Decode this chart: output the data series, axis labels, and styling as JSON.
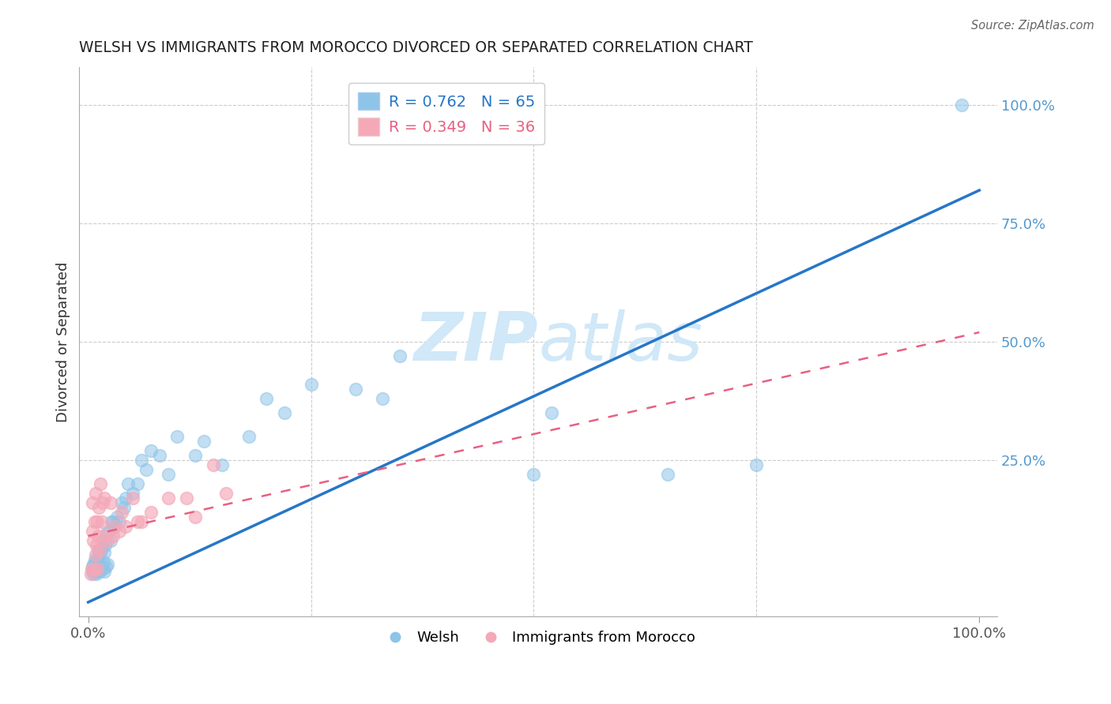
{
  "title": "WELSH VS IMMIGRANTS FROM MOROCCO DIVORCED OR SEPARATED CORRELATION CHART",
  "source": "Source: ZipAtlas.com",
  "ylabel": "Divorced or Separated",
  "xlim": [
    -0.01,
    1.02
  ],
  "ylim": [
    -0.08,
    1.08
  ],
  "ytick_vals": [
    0.25,
    0.5,
    0.75,
    1.0
  ],
  "welsh_R": 0.762,
  "welsh_N": 65,
  "morocco_R": 0.349,
  "morocco_N": 36,
  "welsh_color": "#8ec4e8",
  "morocco_color": "#f4a8b8",
  "welsh_line_color": "#2676c8",
  "morocco_line_color": "#e86080",
  "background_color": "#ffffff",
  "grid_color": "#cccccc",
  "watermark_color": "#d0e8f8",
  "welsh_line_x0": 0.0,
  "welsh_line_y0": -0.05,
  "welsh_line_x1": 1.0,
  "welsh_line_y1": 0.82,
  "morocco_line_x0": 0.0,
  "morocco_line_y0": 0.09,
  "morocco_line_x1": 1.0,
  "morocco_line_y1": 0.52,
  "welsh_x": [
    0.005,
    0.005,
    0.006,
    0.006,
    0.007,
    0.007,
    0.008,
    0.008,
    0.009,
    0.009,
    0.01,
    0.01,
    0.011,
    0.011,
    0.012,
    0.012,
    0.013,
    0.013,
    0.014,
    0.014,
    0.015,
    0.015,
    0.016,
    0.016,
    0.017,
    0.018,
    0.018,
    0.019,
    0.02,
    0.02,
    0.022,
    0.023,
    0.025,
    0.026,
    0.028,
    0.03,
    0.032,
    0.035,
    0.038,
    0.04,
    0.042,
    0.045,
    0.05,
    0.055,
    0.06,
    0.065,
    0.07,
    0.08,
    0.09,
    0.1,
    0.12,
    0.13,
    0.15,
    0.18,
    0.2,
    0.22,
    0.25,
    0.3,
    0.33,
    0.35,
    0.5,
    0.52,
    0.65,
    0.75,
    0.98
  ],
  "welsh_y": [
    0.015,
    0.025,
    0.01,
    0.03,
    0.015,
    0.04,
    0.02,
    0.035,
    0.01,
    0.025,
    0.015,
    0.04,
    0.02,
    0.06,
    0.025,
    0.05,
    0.015,
    0.06,
    0.02,
    0.055,
    0.025,
    0.065,
    0.02,
    0.08,
    0.035,
    0.055,
    0.015,
    0.07,
    0.025,
    0.095,
    0.03,
    0.1,
    0.08,
    0.12,
    0.12,
    0.11,
    0.13,
    0.12,
    0.16,
    0.15,
    0.17,
    0.2,
    0.18,
    0.2,
    0.25,
    0.23,
    0.27,
    0.26,
    0.22,
    0.3,
    0.26,
    0.29,
    0.24,
    0.3,
    0.38,
    0.35,
    0.41,
    0.4,
    0.38,
    0.47,
    0.22,
    0.35,
    0.22,
    0.24,
    1.0
  ],
  "morocco_x": [
    0.003,
    0.004,
    0.005,
    0.005,
    0.006,
    0.007,
    0.007,
    0.008,
    0.008,
    0.009,
    0.01,
    0.01,
    0.011,
    0.012,
    0.013,
    0.014,
    0.015,
    0.016,
    0.018,
    0.02,
    0.022,
    0.025,
    0.028,
    0.03,
    0.035,
    0.038,
    0.042,
    0.05,
    0.055,
    0.06,
    0.07,
    0.09,
    0.11,
    0.12,
    0.14,
    0.155
  ],
  "morocco_y": [
    0.01,
    0.02,
    0.1,
    0.16,
    0.08,
    0.02,
    0.12,
    0.05,
    0.18,
    0.07,
    0.02,
    0.12,
    0.09,
    0.15,
    0.06,
    0.2,
    0.12,
    0.16,
    0.17,
    0.09,
    0.08,
    0.16,
    0.09,
    0.11,
    0.1,
    0.14,
    0.11,
    0.17,
    0.12,
    0.12,
    0.14,
    0.17,
    0.17,
    0.13,
    0.24,
    0.18
  ]
}
